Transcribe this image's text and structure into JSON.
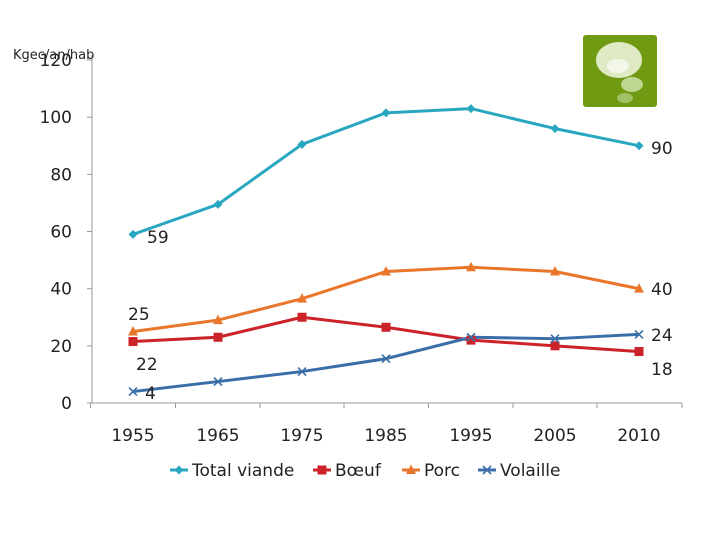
{
  "unit_label": "Kgec/an/hab",
  "chart_data": {
    "type": "line",
    "title": "",
    "xlabel": "",
    "ylabel": "Kgec/an/hab",
    "x": [
      "1955",
      "1965",
      "1975",
      "1985",
      "1995",
      "2005",
      "2010"
    ],
    "ylim": [
      0,
      120
    ],
    "yticks": [
      "0",
      "20",
      "40",
      "60",
      "80",
      "100",
      "120"
    ],
    "grid": false,
    "legend": "bottom",
    "series": [
      {
        "name": "Total viande",
        "color": "#2aa7c0",
        "marker": "diamond",
        "values": [
          59,
          69.5,
          90.5,
          101.5,
          103,
          96,
          90
        ]
      },
      {
        "name": "Bœuf",
        "color": "#cc2229",
        "marker": "square",
        "values": [
          21.5,
          23,
          30,
          26.5,
          22,
          20,
          18
        ]
      },
      {
        "name": "Porc",
        "color": "#e9762b",
        "marker": "triangle",
        "values": [
          25,
          29,
          36.5,
          46,
          47.5,
          46,
          40
        ]
      },
      {
        "name": "Volaille",
        "color": "#3b6ea8",
        "marker": "x",
        "values": [
          4,
          7.5,
          11,
          15.5,
          23,
          22.5,
          24
        ]
      }
    ],
    "annotations": [
      "59",
      "90",
      "25",
      "40",
      "22",
      "24",
      "4",
      "18"
    ]
  }
}
